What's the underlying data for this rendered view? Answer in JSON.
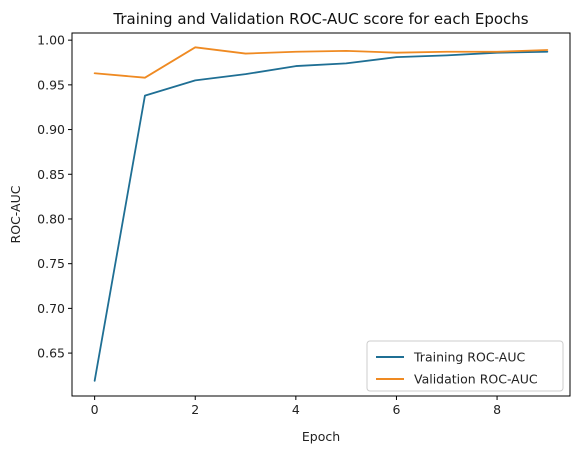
{
  "chart_data": {
    "type": "line",
    "title": "Training and Validation ROC-AUC score for each Epochs",
    "xlabel": "Epoch",
    "ylabel": "ROC-AUC",
    "x": [
      0,
      1,
      2,
      3,
      4,
      5,
      6,
      7,
      8,
      9
    ],
    "xlim": [
      -0.45,
      9.45
    ],
    "ylim": [
      0.602,
      1.008
    ],
    "xticks": [
      0,
      2,
      4,
      6,
      8
    ],
    "yticks": [
      0.65,
      0.7,
      0.75,
      0.8,
      0.85,
      0.9,
      0.95,
      1.0
    ],
    "ytick_labels": [
      "0.65",
      "0.70",
      "0.75",
      "0.80",
      "0.85",
      "0.90",
      "0.95",
      "1.00"
    ],
    "grid": false,
    "legend_position": "bottom-right",
    "series": [
      {
        "name": "Training ROC-AUC",
        "color": "#1f6f94",
        "values": [
          0.619,
          0.938,
          0.955,
          0.962,
          0.971,
          0.974,
          0.981,
          0.983,
          0.986,
          0.987
        ]
      },
      {
        "name": "Validation ROC-AUC",
        "color": "#ef8a22",
        "values": [
          0.963,
          0.958,
          0.992,
          0.985,
          0.987,
          0.988,
          0.986,
          0.987,
          0.987,
          0.989
        ]
      }
    ]
  }
}
